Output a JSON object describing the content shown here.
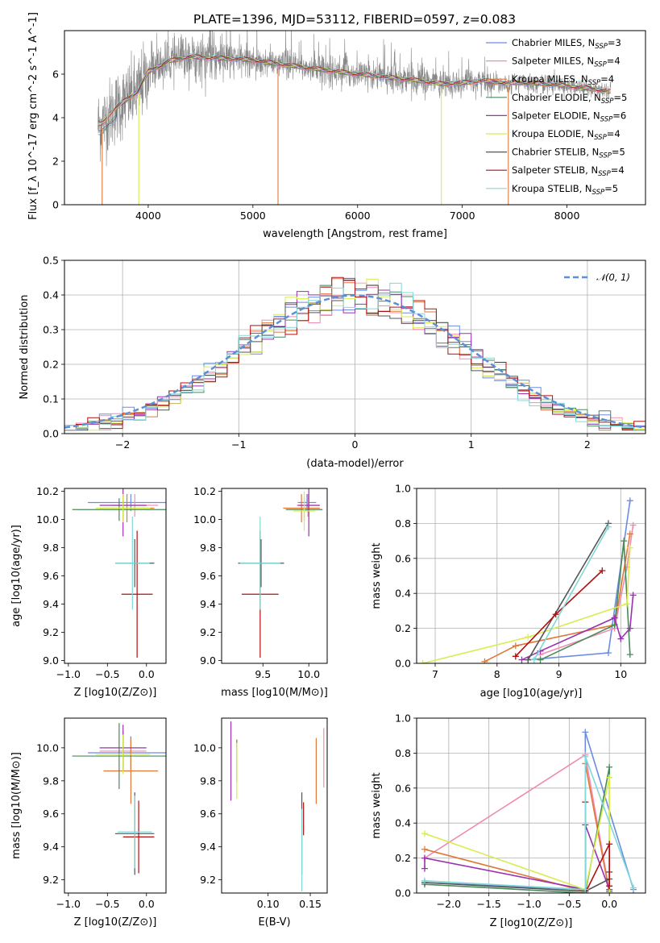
{
  "figure": {
    "title": "PLATE=1396, MJD=53112, FIBERID=0597, z=0.083"
  },
  "models": [
    {
      "name": "Chabrier MILES, N",
      "sub": "SSP",
      "suffix": "=3",
      "color": "#6a8ce3"
    },
    {
      "name": "Salpeter MILES, N",
      "sub": "SSP",
      "suffix": "=4",
      "color": "#f08cb4"
    },
    {
      "name": "Kroupa MILES, N",
      "sub": "SSP",
      "suffix": "=4",
      "color": "#e07838"
    },
    {
      "name": "Chabrier ELODIE, N",
      "sub": "SSP",
      "suffix": "=5",
      "color": "#4a8a5a"
    },
    {
      "name": "Salpeter ELODIE, N",
      "sub": "SSP",
      "suffix": "=6",
      "color": "#9b30b0"
    },
    {
      "name": "Kroupa ELODIE, N",
      "sub": "SSP",
      "suffix": "=4",
      "color": "#d8ec50"
    },
    {
      "name": "Chabrier STELIB, N",
      "sub": "SSP",
      "suffix": "=5",
      "color": "#555555"
    },
    {
      "name": "Salpeter STELIB, N",
      "sub": "SSP",
      "suffix": "=4",
      "color": "#b01010"
    },
    {
      "name": "Kroupa STELIB, N",
      "sub": "SSP",
      "suffix": "=5",
      "color": "#80d8d8"
    }
  ],
  "chart_data": [
    {
      "id": "spectrum",
      "type": "line",
      "xlabel": "wavelength [Angstrom, rest frame]",
      "ylabel": "Flux [f_λ 10^-17 erg cm^-2 s^-1 A^-1]",
      "xlim": [
        3200,
        8750
      ],
      "ylim": [
        0,
        8
      ],
      "xticks": [
        4000,
        5000,
        6000,
        7000,
        8000
      ],
      "yticks": [
        0,
        2,
        4,
        6
      ],
      "data_series": {
        "name": "data",
        "color": "#888888"
      },
      "continuum_knots": {
        "x": [
          3550,
          3700,
          3900,
          4000,
          4200,
          4400,
          4600,
          4800,
          5000,
          5200,
          5500,
          6000,
          6500,
          6800,
          7000,
          7200,
          7400,
          7600,
          7800,
          8000,
          8200,
          8400
        ],
        "y": [
          3.7,
          4.5,
          5.2,
          6.1,
          6.6,
          6.8,
          6.75,
          6.7,
          6.65,
          6.5,
          6.3,
          6.0,
          5.75,
          5.55,
          5.6,
          5.7,
          5.6,
          5.6,
          5.55,
          5.45,
          5.35,
          5.2
        ]
      },
      "sky_line_drops": [
        3560,
        3910,
        5240,
        6800,
        7440
      ],
      "legend_position": "upper right"
    },
    {
      "id": "residual-distribution",
      "type": "bar",
      "xlabel": "(data-model)/error",
      "ylabel": "Normed distribution",
      "xlim": [
        -2.5,
        2.5
      ],
      "ylim": [
        0,
        0.5
      ],
      "xticks": [
        -2,
        -1,
        0,
        1,
        2
      ],
      "yticks": [
        0.0,
        0.1,
        0.2,
        0.3,
        0.4,
        0.5
      ],
      "bin_width": 0.1,
      "reference_curve": {
        "label": "𝒩(0, 1)",
        "color": "#5b8fd8",
        "mean": 0,
        "sigma": 1
      },
      "grid": true,
      "legend_position": "upper right"
    },
    {
      "id": "age-vs-Z",
      "type": "scatter",
      "xlabel": "Z [log10(Z/Z⊙)]",
      "ylabel": "age [log10(age/yr)]",
      "xlim": [
        -1.05,
        0.25
      ],
      "ylim": [
        8.98,
        10.22
      ],
      "xticks": [
        -1.0,
        -0.5,
        0.0
      ],
      "yticks": [
        9.0,
        9.2,
        9.4,
        9.6,
        9.8,
        10.0,
        10.2
      ],
      "points": [
        {
          "model": 0,
          "x": -0.2,
          "y": 10.12,
          "xerr": 0.55,
          "yerr": 0.06
        },
        {
          "model": 1,
          "x": -0.15,
          "y": 10.1,
          "xerr": 0.3,
          "yerr": 0.08
        },
        {
          "model": 2,
          "x": -0.25,
          "y": 10.08,
          "xerr": 0.35,
          "yerr": 0.1
        },
        {
          "model": 3,
          "x": -0.35,
          "y": 10.07,
          "xerr": 0.6,
          "yerr": 0.08
        },
        {
          "model": 4,
          "x": -0.3,
          "y": 10.1,
          "xerr": 0.3,
          "yerr": 0.22
        },
        {
          "model": 5,
          "x": -0.3,
          "y": 10.08,
          "xerr": 0.35,
          "yerr": 0.1
        },
        {
          "model": 6,
          "x": -0.15,
          "y": 9.69,
          "xerr": 0.25,
          "yerr": 0.17
        },
        {
          "model": 7,
          "x": -0.12,
          "y": 9.47,
          "xerr": 0.2,
          "yerr": 0.45
        },
        {
          "model": 8,
          "x": -0.18,
          "y": 9.69,
          "xerr": 0.22,
          "yerr": 0.33
        }
      ]
    },
    {
      "id": "age-vs-mass",
      "type": "scatter",
      "xlabel": "mass [log10(M/M⊙)]",
      "ylabel": "",
      "xlim": [
        9.05,
        10.2
      ],
      "ylim": [
        8.98,
        10.22
      ],
      "xticks": [
        9.5,
        10.0
      ],
      "yticks": [
        9.0,
        9.2,
        9.4,
        9.6,
        9.8,
        10.0,
        10.2
      ],
      "points": [
        {
          "model": 0,
          "x": 9.98,
          "y": 10.12,
          "xerr": 0.1,
          "yerr": 0.06
        },
        {
          "model": 1,
          "x": 9.99,
          "y": 10.1,
          "xerr": 0.12,
          "yerr": 0.08
        },
        {
          "model": 2,
          "x": 9.92,
          "y": 10.08,
          "xerr": 0.2,
          "yerr": 0.1
        },
        {
          "model": 3,
          "x": 9.95,
          "y": 10.07,
          "xerr": 0.2,
          "yerr": 0.08
        },
        {
          "model": 4,
          "x": 10.0,
          "y": 10.1,
          "xerr": 0.12,
          "yerr": 0.22
        },
        {
          "model": 5,
          "x": 9.95,
          "y": 10.06,
          "xerr": 0.12,
          "yerr": 0.14
        },
        {
          "model": 6,
          "x": 9.48,
          "y": 9.69,
          "xerr": 0.25,
          "yerr": 0.17
        },
        {
          "model": 7,
          "x": 9.47,
          "y": 9.47,
          "xerr": 0.2,
          "yerr": 0.45
        },
        {
          "model": 8,
          "x": 9.47,
          "y": 9.69,
          "xerr": 0.22,
          "yerr": 0.33
        }
      ]
    },
    {
      "id": "weight-vs-age",
      "type": "line",
      "xlabel": "age [log10(age/yr)]",
      "ylabel": "mass weight",
      "xlim": [
        6.7,
        10.4
      ],
      "ylim": [
        0,
        1
      ],
      "xticks": [
        7,
        8,
        9,
        10
      ],
      "yticks": [
        0.0,
        0.2,
        0.4,
        0.6,
        0.8,
        1.0
      ],
      "series": [
        {
          "model": 0,
          "x": [
            8.5,
            9.8,
            10.15
          ],
          "y": [
            0.02,
            0.06,
            0.93
          ]
        },
        {
          "model": 1,
          "x": [
            8.7,
            9.9,
            10.1,
            10.2
          ],
          "y": [
            0.05,
            0.2,
            0.55,
            0.79
          ]
        },
        {
          "model": 2,
          "x": [
            7.8,
            8.3,
            9.9,
            10.15
          ],
          "y": [
            0.01,
            0.1,
            0.22,
            0.74
          ]
        },
        {
          "model": 3,
          "x": [
            8.7,
            9.9,
            10.05,
            10.15
          ],
          "y": [
            0.02,
            0.22,
            0.7,
            0.05
          ]
        },
        {
          "model": 4,
          "x": [
            8.4,
            8.7,
            9.9,
            10.0,
            10.15,
            10.2
          ],
          "y": [
            0.02,
            0.07,
            0.26,
            0.14,
            0.2,
            0.39
          ]
        },
        {
          "model": 5,
          "x": [
            6.8,
            8.5,
            10.1,
            10.15
          ],
          "y": [
            0.0,
            0.15,
            0.34,
            0.66
          ]
        },
        {
          "model": 6,
          "x": [
            8.5,
            9.8
          ],
          "y": [
            0.02,
            0.8
          ]
        },
        {
          "model": 7,
          "x": [
            8.3,
            8.95,
            9.7
          ],
          "y": [
            0.04,
            0.28,
            0.53
          ]
        },
        {
          "model": 8,
          "x": [
            8.6,
            9.8
          ],
          "y": [
            0.02,
            0.78
          ]
        }
      ],
      "grid": true
    },
    {
      "id": "mass-vs-Z",
      "type": "scatter",
      "xlabel": "Z [log10(Z/Z⊙)]",
      "ylabel": "mass [log10(M/M⊙)]",
      "xlim": [
        -1.05,
        0.25
      ],
      "ylim": [
        9.12,
        10.18
      ],
      "xticks": [
        -1.0,
        -0.5,
        0.0
      ],
      "yticks": [
        9.2,
        9.4,
        9.6,
        9.8,
        10.0
      ],
      "points": [
        {
          "model": 0,
          "x": -0.2,
          "y": 9.97,
          "xerr": 0.55,
          "yerr": 0.1
        },
        {
          "model": 1,
          "x": -0.3,
          "y": 9.98,
          "xerr": 0.3,
          "yerr": 0.12
        },
        {
          "model": 2,
          "x": -0.2,
          "y": 9.86,
          "xerr": 0.35,
          "yerr": 0.2
        },
        {
          "model": 3,
          "x": -0.35,
          "y": 9.95,
          "xerr": 0.6,
          "yerr": 0.2
        },
        {
          "model": 4,
          "x": -0.3,
          "y": 10.0,
          "xerr": 0.3,
          "yerr": 0.14
        },
        {
          "model": 5,
          "x": -0.3,
          "y": 9.96,
          "xerr": 0.35,
          "yerr": 0.12
        },
        {
          "model": 6,
          "x": -0.15,
          "y": 9.48,
          "xerr": 0.25,
          "yerr": 0.25
        },
        {
          "model": 7,
          "x": -0.1,
          "y": 9.46,
          "xerr": 0.2,
          "yerr": 0.22
        },
        {
          "model": 8,
          "x": -0.15,
          "y": 9.49,
          "xerr": 0.22,
          "yerr": 0.22
        }
      ]
    },
    {
      "id": "mass-vs-ebv",
      "type": "scatter",
      "xlabel": "E(B-V)",
      "ylabel": "",
      "xlim": [
        0.045,
        0.17
      ],
      "ylim": [
        9.12,
        10.18
      ],
      "xticks": [
        0.1,
        0.15
      ],
      "yticks": [
        9.2,
        9.4,
        9.6,
        9.8,
        10.0
      ],
      "points": [
        {
          "model": 1,
          "x": 0.166,
          "y": 9.94,
          "yerr": 0.18
        },
        {
          "model": 2,
          "x": 0.157,
          "y": 9.86,
          "yerr": 0.2
        },
        {
          "model": 3,
          "x": 0.063,
          "y": 9.92,
          "yerr": 0.13
        },
        {
          "model": 4,
          "x": 0.056,
          "y": 9.92,
          "yerr": 0.24
        },
        {
          "model": 5,
          "x": 0.063,
          "y": 9.86,
          "yerr": 0.17
        },
        {
          "model": 6,
          "x": 0.14,
          "y": 9.48,
          "yerr": 0.25
        },
        {
          "model": 7,
          "x": 0.142,
          "y": 9.57,
          "yerr": 0.1
        },
        {
          "model": 8,
          "x": 0.14,
          "y": 9.38,
          "yerr": 0.25
        }
      ]
    },
    {
      "id": "weight-vs-Z",
      "type": "line",
      "xlabel": "Z [log10(Z/Z⊙)]",
      "ylabel": "mass weight",
      "xlim": [
        -2.4,
        0.45
      ],
      "ylim": [
        0,
        1
      ],
      "xticks": [
        -2.0,
        -1.5,
        -1.0,
        -0.5,
        0.0
      ],
      "yticks": [
        0.0,
        0.2,
        0.4,
        0.6,
        0.8,
        1.0
      ],
      "series": [
        {
          "model": 0,
          "x": [
            -2.3,
            -0.3,
            -0.3,
            0.3
          ],
          "y": [
            0.06,
            0.02,
            0.92,
            0.02
          ]
        },
        {
          "model": 1,
          "x": [
            -2.3,
            -0.3,
            0.0
          ],
          "y": [
            0.2,
            0.79,
            0.01
          ]
        },
        {
          "model": 2,
          "x": [
            -2.3,
            -0.3,
            -0.3,
            0.0
          ],
          "y": [
            0.25,
            0.01,
            0.74,
            0.0
          ]
        },
        {
          "model": 3,
          "x": [
            -2.3,
            -0.3,
            0.0,
            0.0
          ],
          "y": [
            0.05,
            0.0,
            0.72,
            0.01
          ]
        },
        {
          "model": 4,
          "x": [
            -2.3,
            -2.3,
            -0.3,
            -0.3,
            0.0
          ],
          "y": [
            0.14,
            0.2,
            0.02,
            0.39,
            0.02
          ]
        },
        {
          "model": 5,
          "x": [
            -2.3,
            -0.3,
            0.0,
            0.0
          ],
          "y": [
            0.34,
            0.02,
            0.66,
            0.0
          ]
        },
        {
          "model": 6,
          "x": [
            -2.3,
            -0.3,
            0.0,
            0.0
          ],
          "y": [
            0.06,
            0.01,
            0.08,
            0.12
          ]
        },
        {
          "model": 7,
          "x": [
            -0.3,
            -0.3,
            0.0,
            0.0
          ],
          "y": [
            0.52,
            0.0,
            0.28,
            0.04
          ]
        },
        {
          "model": 8,
          "x": [
            -2.3,
            -0.3,
            -0.3,
            0.3
          ],
          "y": [
            0.07,
            0.02,
            0.78,
            0.03
          ]
        }
      ],
      "grid": true
    }
  ]
}
